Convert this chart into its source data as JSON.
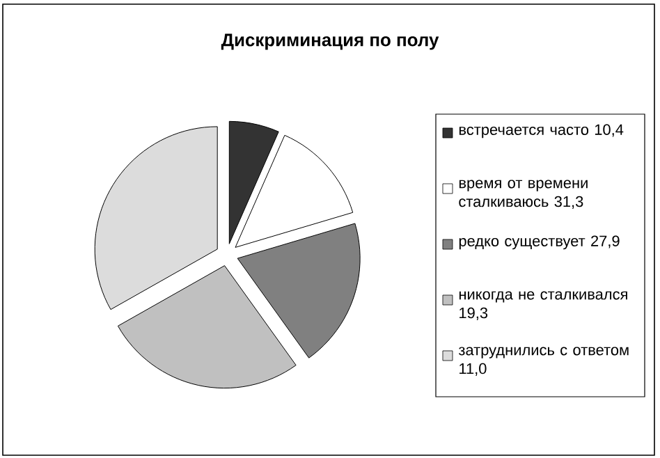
{
  "chart_data": {
    "type": "pie",
    "title": "Дискриминация по полу",
    "categories": [
      "встречается часто 10,4",
      "время от времени сталкиваюсь 31,3",
      "редко существует 27,9",
      "никогда не сталкивался 19,3",
      "затруднились с ответом 11,0"
    ],
    "values": [
      6.6,
      13.8,
      19.7,
      26.7,
      33.2
    ],
    "colors": [
      "#333333",
      "#ffffff",
      "#808080",
      "#c0c0c0",
      "#dcdcdc"
    ],
    "legend": "right"
  }
}
